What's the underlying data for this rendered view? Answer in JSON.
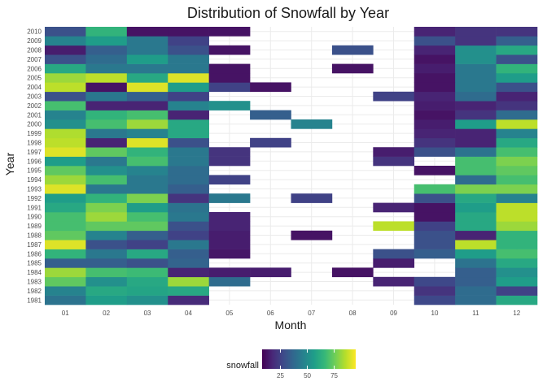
{
  "chart_data": {
    "type": "heatmap",
    "title": "Distribution of Snowfall by Year",
    "xlabel": "Month",
    "ylabel": "Year",
    "x": [
      "01",
      "02",
      "03",
      "04",
      "05",
      "06",
      "07",
      "08",
      "09",
      "10",
      "11",
      "12"
    ],
    "y": [
      "1981",
      "1982",
      "1983",
      "1984",
      "1985",
      "1986",
      "1987",
      "1988",
      "1989",
      "1990",
      "1991",
      "1992",
      "1993",
      "1994",
      "1995",
      "1996",
      "1997",
      "1998",
      "1999",
      "2000",
      "2001",
      "2002",
      "2003",
      "2004",
      "2005",
      "2006",
      "2007",
      "2008",
      "2009",
      "2010"
    ],
    "values": [
      [
        38,
        55,
        50,
        12,
        null,
        null,
        null,
        null,
        null,
        22,
        35,
        60
      ],
      [
        45,
        60,
        58,
        60,
        null,
        null,
        null,
        null,
        null,
        15,
        35,
        20
      ],
      [
        75,
        50,
        60,
        85,
        35,
        null,
        null,
        null,
        10,
        22,
        30,
        55
      ],
      [
        85,
        70,
        68,
        10,
        8,
        8,
        null,
        5,
        null,
        null,
        30,
        50
      ],
      [
        30,
        30,
        25,
        32,
        null,
        null,
        null,
        null,
        8,
        null,
        38,
        60
      ],
      [
        65,
        40,
        60,
        30,
        6,
        null,
        null,
        null,
        25,
        30,
        55,
        70
      ],
      [
        95,
        25,
        20,
        40,
        8,
        null,
        null,
        null,
        null,
        25,
        90,
        65
      ],
      [
        75,
        45,
        30,
        20,
        8,
        null,
        5,
        null,
        null,
        25,
        10,
        65
      ],
      [
        70,
        75,
        75,
        25,
        10,
        null,
        null,
        null,
        90,
        20,
        60,
        85
      ],
      [
        70,
        85,
        70,
        40,
        10,
        null,
        null,
        null,
        null,
        5,
        60,
        90
      ],
      [
        60,
        80,
        55,
        38,
        null,
        null,
        null,
        null,
        10,
        5,
        55,
        90
      ],
      [
        55,
        65,
        80,
        15,
        40,
        null,
        20,
        null,
        null,
        25,
        60,
        45
      ],
      [
        95,
        40,
        40,
        30,
        null,
        null,
        null,
        null,
        null,
        70,
        80,
        80
      ],
      [
        85,
        70,
        40,
        35,
        20,
        null,
        null,
        null,
        null,
        null,
        35,
        70
      ],
      [
        75,
        50,
        45,
        35,
        null,
        null,
        null,
        null,
        null,
        5,
        70,
        75
      ],
      [
        55,
        40,
        70,
        40,
        15,
        null,
        null,
        null,
        15,
        null,
        70,
        80
      ],
      [
        95,
        75,
        65,
        40,
        15,
        null,
        null,
        null,
        8,
        25,
        38,
        70
      ],
      [
        90,
        10,
        95,
        25,
        null,
        20,
        null,
        null,
        null,
        15,
        10,
        60
      ],
      [
        88,
        40,
        45,
        60,
        null,
        null,
        null,
        null,
        null,
        10,
        10,
        45
      ],
      [
        50,
        70,
        85,
        60,
        null,
        null,
        45,
        null,
        null,
        8,
        55,
        90
      ],
      [
        45,
        65,
        70,
        10,
        null,
        30,
        null,
        null,
        null,
        5,
        15,
        35
      ],
      [
        70,
        10,
        10,
        45,
        50,
        null,
        null,
        null,
        null,
        8,
        10,
        15
      ],
      [
        25,
        40,
        30,
        20,
        null,
        null,
        null,
        null,
        20,
        10,
        35,
        10
      ],
      [
        90,
        5,
        95,
        55,
        20,
        5,
        null,
        null,
        null,
        5,
        40,
        25
      ],
      [
        85,
        90,
        60,
        95,
        5,
        null,
        null,
        null,
        null,
        5,
        40,
        55
      ],
      [
        60,
        40,
        40,
        40,
        5,
        null,
        null,
        5,
        null,
        8,
        40,
        65
      ],
      [
        25,
        35,
        55,
        40,
        null,
        null,
        null,
        null,
        null,
        5,
        50,
        25
      ],
      [
        8,
        30,
        40,
        25,
        5,
        null,
        null,
        25,
        null,
        10,
        50,
        60
      ],
      [
        45,
        55,
        40,
        20,
        null,
        null,
        null,
        null,
        null,
        25,
        15,
        30
      ],
      [
        25,
        65,
        5,
        5,
        5,
        null,
        null,
        null,
        null,
        10,
        15,
        15
      ]
    ],
    "colorbar": {
      "label": "snowfall",
      "ticks": [
        25,
        50,
        75
      ],
      "min": 0,
      "max": 100
    },
    "legend_position": "bottom",
    "grid": true
  }
}
